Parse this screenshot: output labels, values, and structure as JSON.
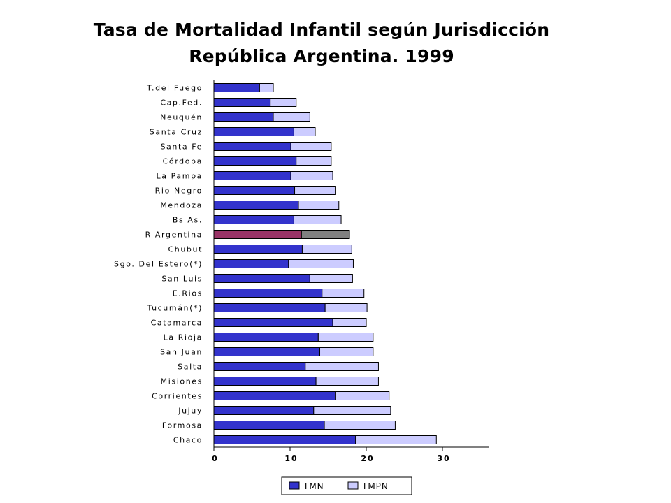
{
  "chart_data": {
    "type": "bar",
    "orientation": "horizontal",
    "stacked": true,
    "title": "Tasa de Mortalidad Infantil según Jurisdicción",
    "subtitle": "República Argentina. 1999",
    "categories": [
      "T.del Fuego",
      "Cap.Fed.",
      "Neuquén",
      "Santa Cruz",
      "Santa Fe",
      "Córdoba",
      "La Pampa",
      "Rio Negro",
      "Mendoza",
      "Bs As.",
      "R Argentina",
      "Chubut",
      "Sgo. Del Estero(*)",
      "San Luis",
      "E.Rios",
      "Tucumán(*)",
      "Catamarca",
      "La Rioja",
      "San Juan",
      "Salta",
      "Misiones",
      "Corrientes",
      "Jujuy",
      "Formosa",
      "Chaco"
    ],
    "series": [
      {
        "name": "TMN",
        "values": [
          6.0,
          7.4,
          7.8,
          10.5,
          10.1,
          10.8,
          10.1,
          10.6,
          11.1,
          10.5,
          11.5,
          11.6,
          9.8,
          12.6,
          14.2,
          14.6,
          15.6,
          13.7,
          13.9,
          12.0,
          13.4,
          16.0,
          13.1,
          14.5,
          18.6
        ]
      },
      {
        "name": "TMPN",
        "values": [
          1.8,
          3.4,
          4.8,
          2.8,
          5.3,
          4.6,
          5.5,
          5.4,
          5.3,
          6.2,
          6.3,
          6.5,
          8.5,
          5.6,
          5.5,
          5.5,
          4.4,
          7.2,
          7.0,
          9.6,
          8.2,
          7.0,
          10.1,
          9.3,
          10.6
        ]
      }
    ],
    "highlight_category": "R Argentina",
    "xlim": [
      0,
      35
    ],
    "xticks": [
      "0",
      "10",
      "20",
      "30"
    ],
    "xlabel": "",
    "ylabel": "",
    "grid": false,
    "legend_position": "bottom",
    "colors": {
      "TMN": "#3333cc",
      "TMPN": "#ccccff",
      "highlight_TMN": "#993366",
      "highlight_TMPN": "#808080"
    }
  }
}
